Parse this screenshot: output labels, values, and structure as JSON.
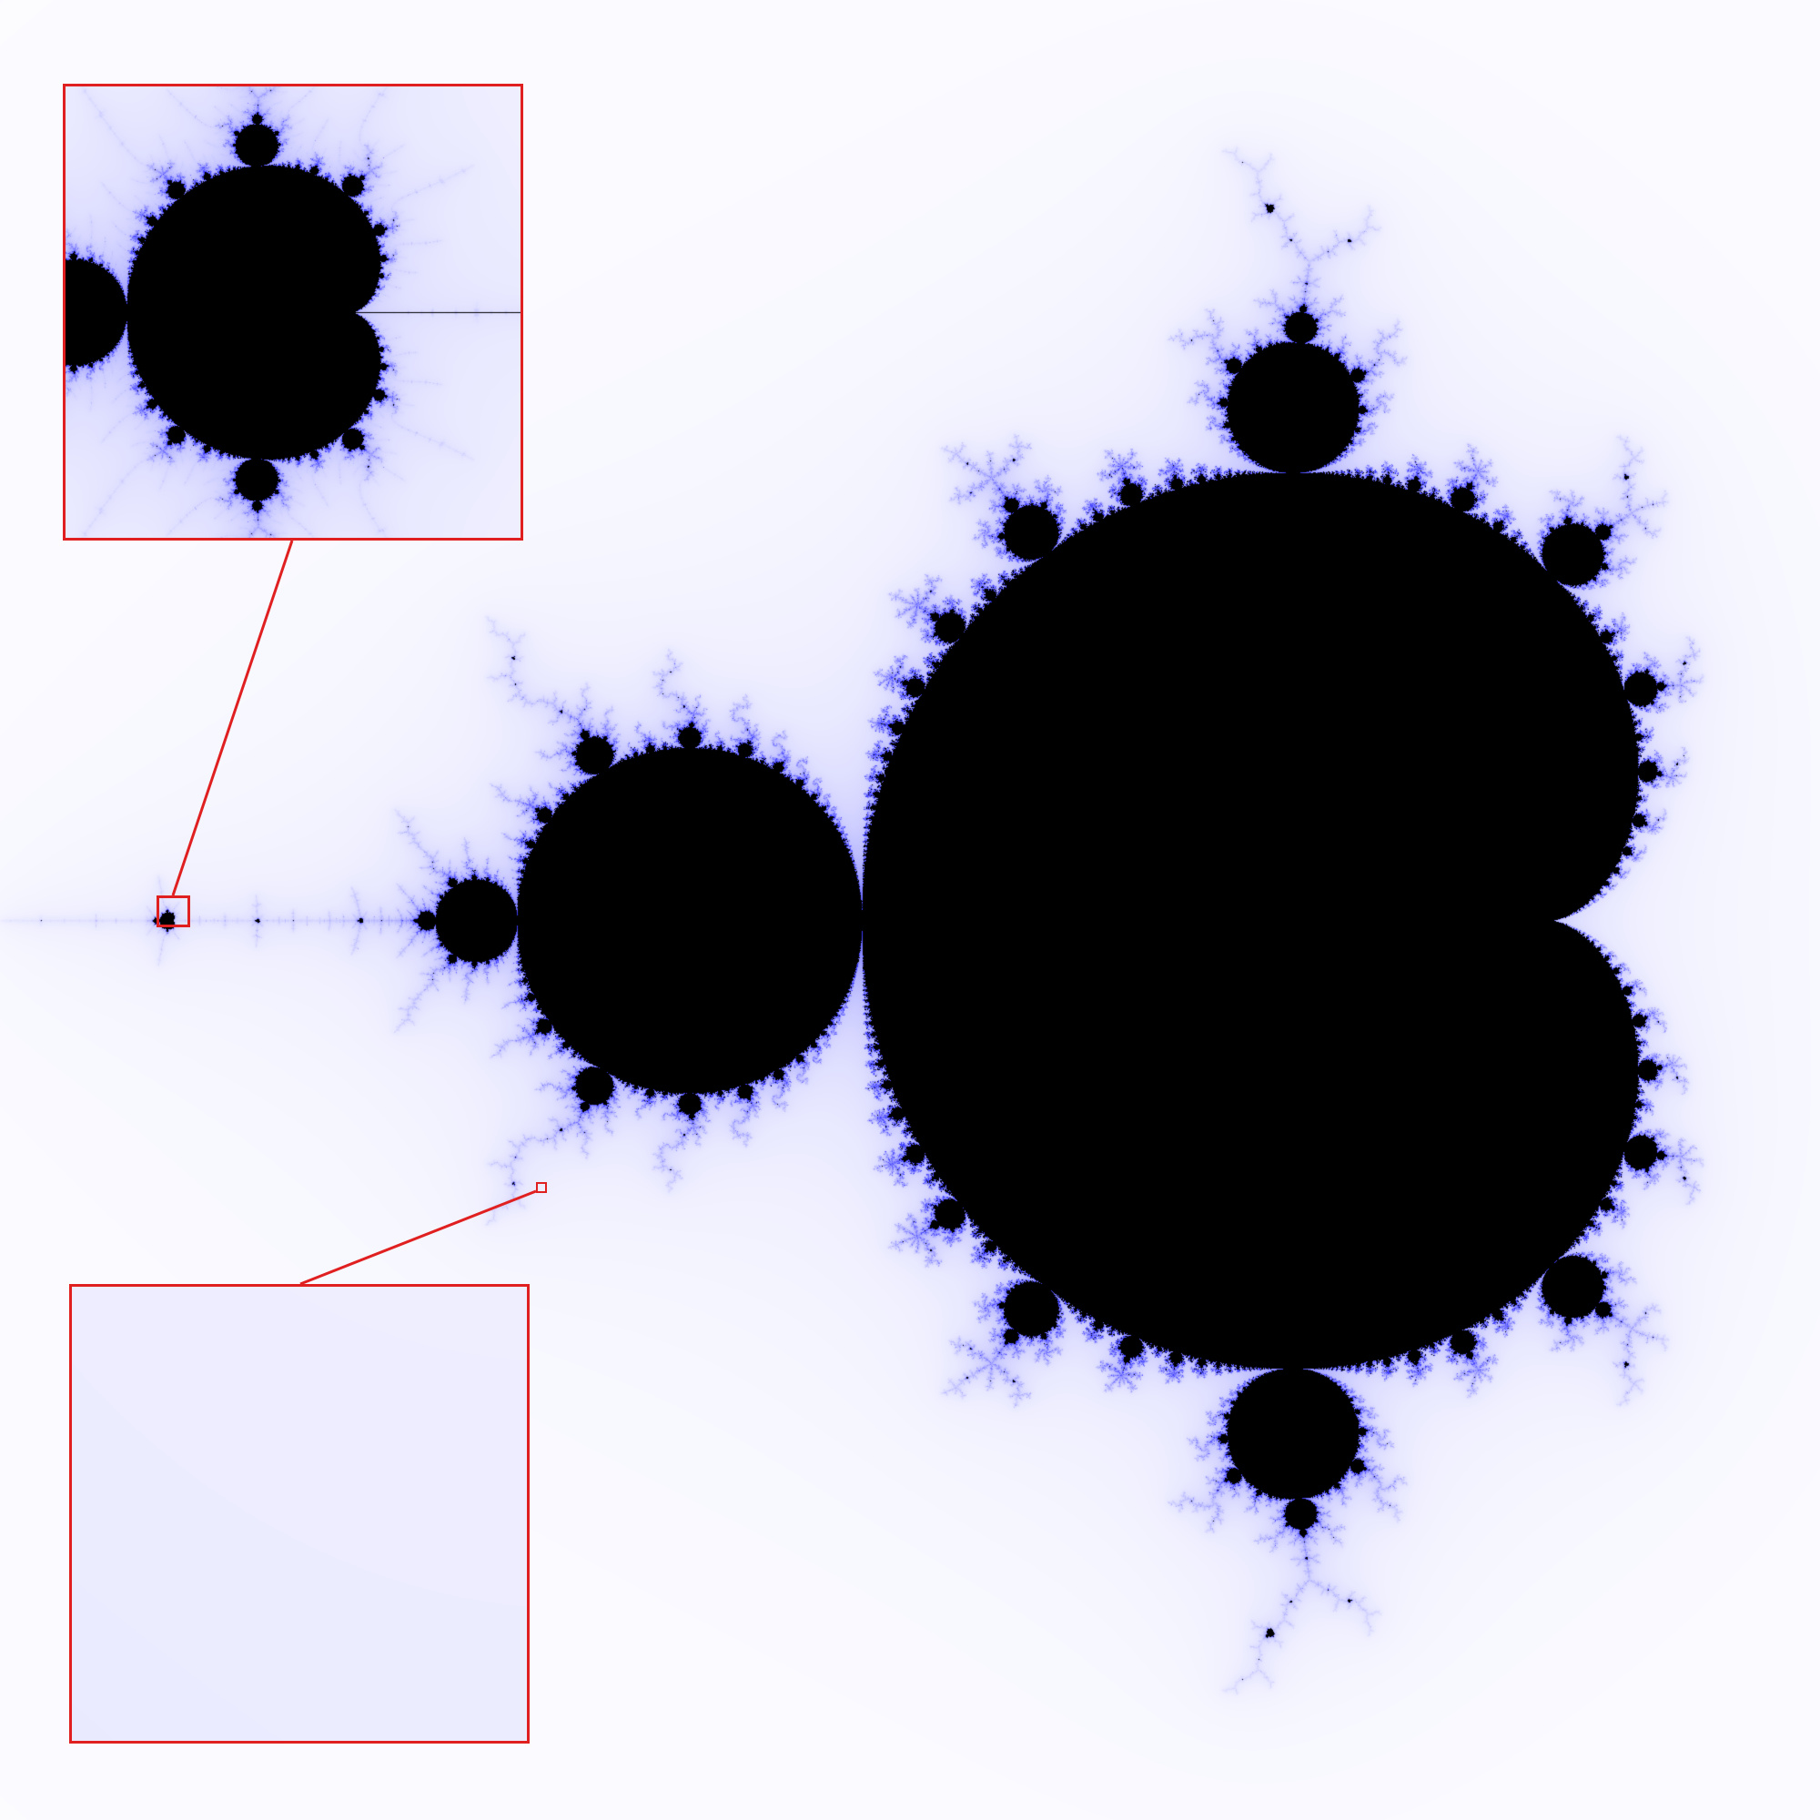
{
  "figure": {
    "subject": "Mandelbrot set",
    "background_color": "#ffffff",
    "set_color": "#000000",
    "glow_color": "#3a3aff",
    "highlight_color": "#e02020",
    "insets": [
      {
        "id": "inset-top",
        "magnifies": "marker-left"
      },
      {
        "id": "inset-bottom",
        "magnifies": "marker-small"
      }
    ]
  }
}
